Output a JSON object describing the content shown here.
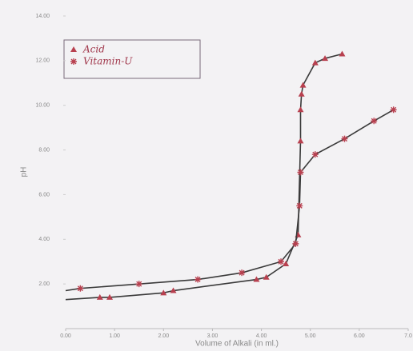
{
  "chart_data": {
    "type": "line",
    "x_label": "Volume of Alkali (in ml.)",
    "y_label": "pH",
    "xlim": [
      0,
      7
    ],
    "ylim": [
      0,
      14
    ],
    "xticks": [
      {
        "value": 0,
        "label": "0.00"
      },
      {
        "value": 1,
        "label": "1.00"
      },
      {
        "value": 2,
        "label": "2.00"
      },
      {
        "value": 3,
        "label": "3.00"
      },
      {
        "value": 4,
        "label": "4.00"
      },
      {
        "value": 5,
        "label": "5.00"
      },
      {
        "value": 6,
        "label": "6.00"
      },
      {
        "value": 7,
        "label": "7.0"
      }
    ],
    "yticks": [
      {
        "value": 2,
        "label": "2.00"
      },
      {
        "value": 4,
        "label": "4.00"
      },
      {
        "value": 6,
        "label": "6.00"
      },
      {
        "value": 8,
        "label": "8.00"
      },
      {
        "value": 10,
        "label": "10.00"
      },
      {
        "value": 12,
        "label": "12.00"
      },
      {
        "value": 14,
        "label": "14.00"
      }
    ],
    "line_color": "#3a3a3a",
    "series": [
      {
        "name": "Acid",
        "marker": "triangle",
        "color": "#b8404f",
        "x": [
          0,
          0.7,
          0.9,
          2.0,
          2.2,
          3.9,
          4.1,
          4.5,
          4.75,
          4.8,
          4.8,
          4.82,
          4.85,
          5.1,
          5.3,
          5.65
        ],
        "values": [
          1.3,
          1.4,
          1.4,
          1.6,
          1.7,
          2.2,
          2.3,
          2.9,
          4.2,
          8.4,
          9.8,
          10.5,
          10.9,
          11.9,
          12.1,
          12.3
        ]
      },
      {
        "name": "Vitamin-U",
        "marker": "star",
        "color": "#b8404f",
        "x": [
          0,
          0.3,
          1.5,
          2.7,
          3.6,
          4.4,
          4.7,
          4.78,
          4.8,
          5.1,
          5.7,
          6.3,
          6.7
        ],
        "values": [
          1.7,
          1.8,
          2.0,
          2.2,
          2.5,
          3.0,
          3.8,
          5.5,
          7.0,
          7.8,
          8.5,
          9.3,
          9.8
        ]
      }
    ]
  }
}
